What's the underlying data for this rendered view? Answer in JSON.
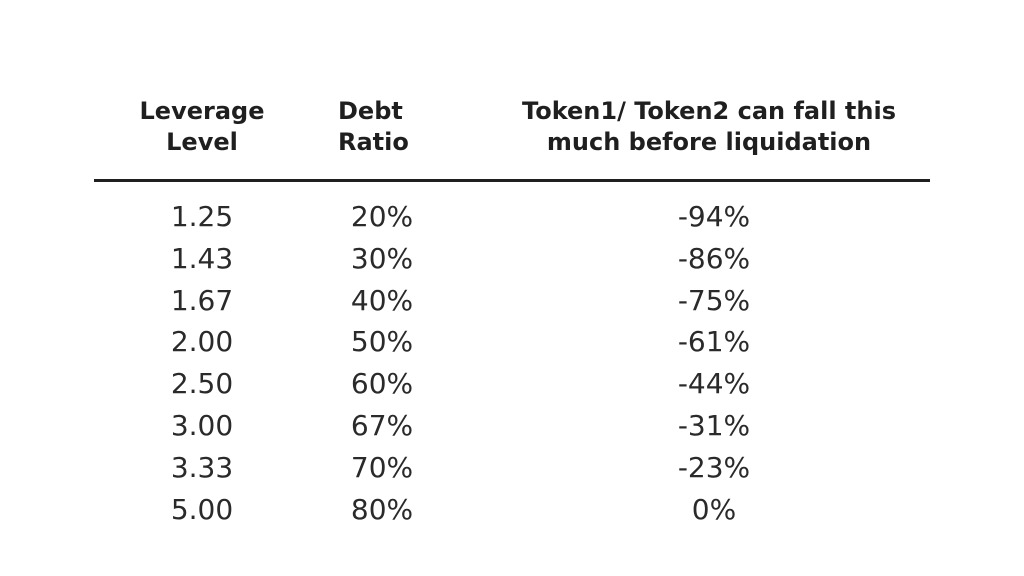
{
  "table": {
    "headers": {
      "leverage": [
        "Leverage",
        "Level"
      ],
      "debt": [
        "Debt",
        "Ratio"
      ],
      "token": [
        "Token1/ Token2 can fall this",
        "much before liquidation"
      ]
    },
    "rows": [
      {
        "leverage": "1.25",
        "debt": "20%",
        "token": "-94%"
      },
      {
        "leverage": "1.43",
        "debt": "30%",
        "token": "-86%"
      },
      {
        "leverage": "1.67",
        "debt": "40%",
        "token": "-75%"
      },
      {
        "leverage": "2.00",
        "debt": "50%",
        "token": "-61%"
      },
      {
        "leverage": "2.50",
        "debt": "60%",
        "token": "-44%"
      },
      {
        "leverage": "3.00",
        "debt": "67%",
        "token": "-31%"
      },
      {
        "leverage": "3.33",
        "debt": "70%",
        "token": "-23%"
      },
      {
        "leverage": "5.00",
        "debt": "80%",
        "token": "0%"
      }
    ]
  }
}
